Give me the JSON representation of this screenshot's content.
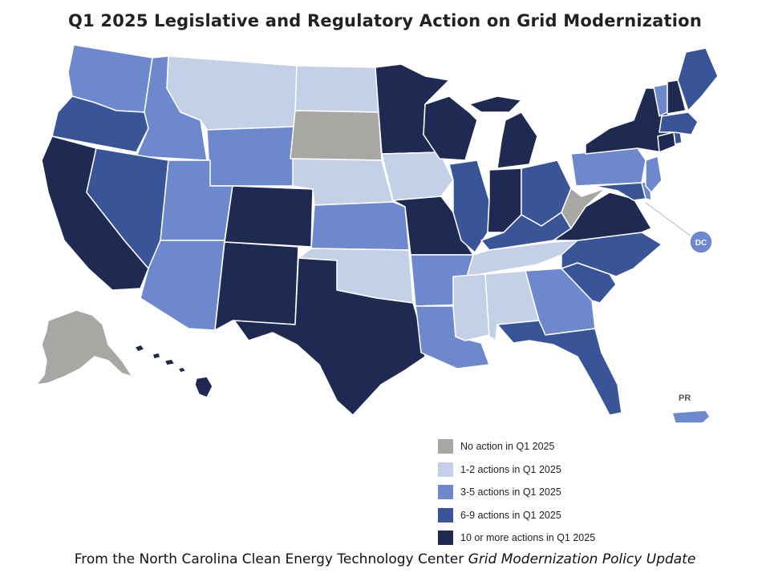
{
  "title": "Q1 2025 Legislative and Regulatory Action on Grid Modernization",
  "caption": {
    "prefix": "From the North Carolina Clean Energy Technology Center ",
    "publication": "Grid Modernization Policy Update"
  },
  "colors": {
    "none": "#a9a7a4",
    "c1_2": "#c3d0e8",
    "c3_5": "#6d88cc",
    "c6_9": "#3a5498",
    "c10": "#1e2a52"
  },
  "legend": [
    {
      "label": "No action in Q1 2025",
      "category": "none"
    },
    {
      "label": "1-2 actions in Q1 2025",
      "category": "c1_2"
    },
    {
      "label": "3-5 actions in Q1 2025",
      "category": "c3_5"
    },
    {
      "label": "6-9 actions in Q1 2025",
      "category": "c6_9"
    },
    {
      "label": "10 or more actions in Q1 2025",
      "category": "c10"
    }
  ],
  "map_labels": {
    "dc": "DC",
    "pr": "PR"
  },
  "states": {
    "WA": "c3_5",
    "OR": "c6_9",
    "CA": "c10",
    "ID": "c3_5",
    "NV": "c6_9",
    "MT": "c1_2",
    "WY": "c3_5",
    "UT": "c3_5",
    "AZ": "c3_5",
    "CO": "c10",
    "NM": "c10",
    "ND": "c1_2",
    "SD": "none",
    "NE": "c1_2",
    "KS": "c3_5",
    "OK": "c1_2",
    "TX": "c10",
    "MN": "c10",
    "IA": "c1_2",
    "MO": "c10",
    "AR": "c3_5",
    "LA": "c3_5",
    "WI": "c10",
    "IL": "c6_9",
    "MI": "c10",
    "IN": "c10",
    "OH": "c6_9",
    "KY": "c6_9",
    "TN": "c1_2",
    "MS": "c1_2",
    "AL": "c1_2",
    "GA": "c3_5",
    "FL": "c6_9",
    "SC": "c6_9",
    "NC": "c6_9",
    "VA": "c10",
    "WV": "none",
    "MD": "c6_9",
    "DE": "c3_5",
    "PA": "c3_5",
    "NJ": "c3_5",
    "NY": "c10",
    "CT": "c10",
    "RI": "c6_9",
    "MA": "c6_9",
    "VT": "c3_5",
    "NH": "c10",
    "ME": "c6_9",
    "AK": "none",
    "HI": "c10",
    "DC": "c3_5",
    "PR": "c3_5"
  }
}
